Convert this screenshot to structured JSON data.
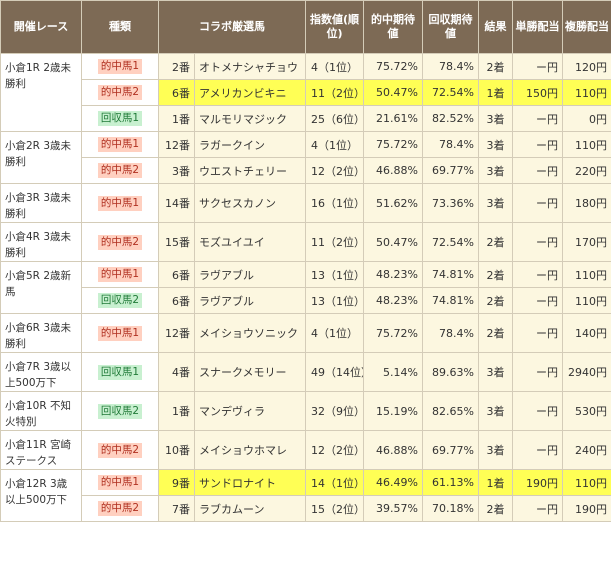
{
  "headers": {
    "race": "開催レース",
    "kind": "種類",
    "horse": "コラボ厳選馬",
    "index": "指数値(順位)",
    "hit": "的中期待値",
    "ret": "回収期待値",
    "result": "結果",
    "win": "単勝配当",
    "place": "複勝配当"
  },
  "colors": {
    "header_bg": "#7d6a55",
    "cell_bg": "#fcf7e0",
    "highlight": "#ffff55",
    "hit_badge_bg": "#ffd0c0",
    "ret_badge_bg": "#c8f0d0"
  },
  "groups": [
    {
      "race": "小倉1R 2歳未勝利",
      "rows": [
        {
          "kind": "的中馬1",
          "kt": "hit",
          "num": "2番",
          "name": "オトメナシャチョウ",
          "idx": "4（1位）",
          "hit": "75.72%",
          "ret": "78.4%",
          "res": "2着",
          "win": "ー円",
          "place": "120円",
          "hl": false
        },
        {
          "kind": "的中馬2",
          "kt": "hit",
          "num": "6番",
          "name": "アメリカンビキニ",
          "idx": "11（2位）",
          "hit": "50.47%",
          "ret": "72.54%",
          "res": "1着",
          "win": "150円",
          "place": "110円",
          "hl": true
        },
        {
          "kind": "回収馬1",
          "kt": "ret",
          "num": "1番",
          "name": "マルモリマジック",
          "idx": "25（6位）",
          "hit": "21.61%",
          "ret": "82.52%",
          "res": "3着",
          "win": "ー円",
          "place": "0円",
          "hl": false
        }
      ]
    },
    {
      "race": "小倉2R 3歳未勝利",
      "rows": [
        {
          "kind": "的中馬1",
          "kt": "hit",
          "num": "12番",
          "name": "ラガークイン",
          "idx": "4（1位）",
          "hit": "75.72%",
          "ret": "78.4%",
          "res": "3着",
          "win": "ー円",
          "place": "110円",
          "hl": false
        },
        {
          "kind": "的中馬2",
          "kt": "hit",
          "num": "3番",
          "name": "ウエストチェリー",
          "idx": "12（2位）",
          "hit": "46.88%",
          "ret": "69.77%",
          "res": "3着",
          "win": "ー円",
          "place": "220円",
          "hl": false
        }
      ]
    },
    {
      "race": "小倉3R 3歳未勝利",
      "rows": [
        {
          "kind": "的中馬1",
          "kt": "hit",
          "num": "14番",
          "name": "サクセスカノン",
          "idx": "16（1位）",
          "hit": "51.62%",
          "ret": "73.36%",
          "res": "3着",
          "win": "ー円",
          "place": "180円",
          "hl": false
        }
      ]
    },
    {
      "race": "小倉4R 3歳未勝利",
      "rows": [
        {
          "kind": "的中馬2",
          "kt": "hit",
          "num": "15番",
          "name": "モズユイユイ",
          "idx": "11（2位）",
          "hit": "50.47%",
          "ret": "72.54%",
          "res": "2着",
          "win": "ー円",
          "place": "170円",
          "hl": false
        }
      ]
    },
    {
      "race": "小倉5R 2歳新馬",
      "rows": [
        {
          "kind": "的中馬1",
          "kt": "hit",
          "num": "6番",
          "name": "ラヴアブル",
          "idx": "13（1位）",
          "hit": "48.23%",
          "ret": "74.81%",
          "res": "2着",
          "win": "ー円",
          "place": "110円",
          "hl": false
        },
        {
          "kind": "回収馬2",
          "kt": "ret",
          "num": "6番",
          "name": "ラヴアブル",
          "idx": "13（1位）",
          "hit": "48.23%",
          "ret": "74.81%",
          "res": "2着",
          "win": "ー円",
          "place": "110円",
          "hl": false
        }
      ]
    },
    {
      "race": "小倉6R 3歳未勝利",
      "rows": [
        {
          "kind": "的中馬1",
          "kt": "hit",
          "num": "12番",
          "name": "メイショウソニック",
          "idx": "4（1位）",
          "hit": "75.72%",
          "ret": "78.4%",
          "res": "2着",
          "win": "ー円",
          "place": "140円",
          "hl": false
        }
      ]
    },
    {
      "race": "小倉7R 3歳以上500万下",
      "rows": [
        {
          "kind": "回収馬1",
          "kt": "ret",
          "num": "4番",
          "name": "スナークメモリー",
          "idx": "49（14位）",
          "hit": "5.14%",
          "ret": "89.63%",
          "res": "3着",
          "win": "ー円",
          "place": "2940円",
          "hl": false
        }
      ]
    },
    {
      "race": "小倉10R 不知火特別",
      "rows": [
        {
          "kind": "回収馬2",
          "kt": "ret",
          "num": "1番",
          "name": "マンデヴィラ",
          "idx": "32（9位）",
          "hit": "15.19%",
          "ret": "82.65%",
          "res": "3着",
          "win": "ー円",
          "place": "530円",
          "hl": false
        }
      ]
    },
    {
      "race": "小倉11R 宮崎ステークス",
      "rows": [
        {
          "kind": "的中馬2",
          "kt": "hit",
          "num": "10番",
          "name": "メイショウホマレ",
          "idx": "12（2位）",
          "hit": "46.88%",
          "ret": "69.77%",
          "res": "3着",
          "win": "ー円",
          "place": "240円",
          "hl": false
        }
      ]
    },
    {
      "race": "小倉12R 3歳以上500万下",
      "rows": [
        {
          "kind": "的中馬1",
          "kt": "hit",
          "num": "9番",
          "name": "サンドロナイト",
          "idx": "14（1位）",
          "hit": "46.49%",
          "ret": "61.13%",
          "res": "1着",
          "win": "190円",
          "place": "110円",
          "hl": true
        },
        {
          "kind": "的中馬2",
          "kt": "hit",
          "num": "7番",
          "name": "ラブカムーン",
          "idx": "15（2位）",
          "hit": "39.57%",
          "ret": "70.18%",
          "res": "2着",
          "win": "ー円",
          "place": "190円",
          "hl": false
        }
      ]
    }
  ]
}
